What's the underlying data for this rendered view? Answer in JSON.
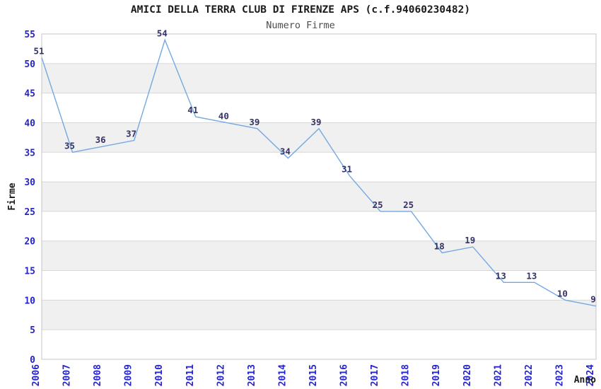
{
  "chart_data": {
    "type": "line",
    "title": "AMICI DELLA TERRA CLUB DI FIRENZE APS (c.f.94060230482)",
    "subtitle": "Numero Firme",
    "xlabel": "Anno",
    "ylabel": "Firme",
    "categories": [
      "2006",
      "2007",
      "2008",
      "2009",
      "2010",
      "2011",
      "2012",
      "2013",
      "2014",
      "2015",
      "2016",
      "2017",
      "2018",
      "2019",
      "2020",
      "2021",
      "2022",
      "2023",
      "2024"
    ],
    "values": [
      51,
      35,
      36,
      37,
      54,
      41,
      40,
      39,
      34,
      39,
      31,
      25,
      25,
      18,
      19,
      13,
      13,
      10,
      9
    ],
    "ylim": [
      0,
      55
    ],
    "ytick_step": 5,
    "grid": true,
    "bands_alternating": true,
    "legend": "none",
    "point_labels_visible": true,
    "x_tick_rotation_degrees": 90,
    "colors": {
      "line": "#74a9e0",
      "tick_label": "#2424cc",
      "point_label": "#333366",
      "title": "#1a1a1a",
      "subtitle": "#4d4d4d",
      "axis_label": "#1a1a1a",
      "band": "#f0f0f0",
      "grid_line": "#d8d8d8",
      "plot_border": "#c6c6c6",
      "background": "#ffffff"
    }
  }
}
